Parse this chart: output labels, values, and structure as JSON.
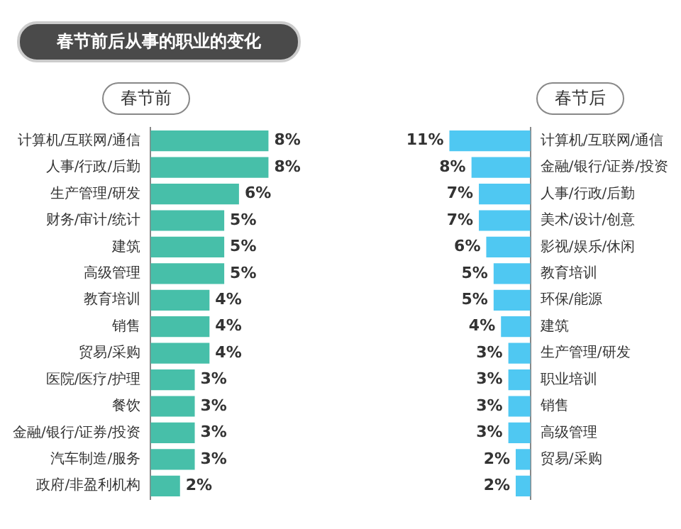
{
  "chart_data": [
    {
      "type": "bar",
      "orientation": "horizontal",
      "title": "春节前",
      "annotations": [
        "春节前后从事的职业的变化"
      ],
      "categories": [
        "计算机/互联网/通信",
        "人事/行政/后勤",
        "生产管理/研发",
        "财务/审计/统计",
        "建筑",
        "高级管理",
        "教育培训",
        "销售",
        "贸易/采购",
        "医院/医疗/护理",
        "餐饮",
        "金融/银行/证券/投资",
        "汽车制造/服务",
        "政府/非盈利机构"
      ],
      "series": [
        {
          "color": "#47bfa9",
          "values": [
            8,
            8,
            6,
            5,
            5,
            5,
            4,
            4,
            4,
            3,
            3,
            3,
            3,
            2
          ],
          "value_labels": [
            "8%",
            "8%",
            "6%",
            "5%",
            "5%",
            "5%",
            "4%",
            "4%",
            "4%",
            "3%",
            "3%",
            "3%",
            "3%",
            "2%"
          ]
        }
      ],
      "tick_labels": "y",
      "legend": false
    },
    {
      "type": "bar",
      "orientation": "horizontal",
      "title": "春节后",
      "categories": [
        "计算机/互联网/通信",
        "金融/银行/证券/投资",
        "人事/行政/后勤",
        "美术/设计/创意",
        "影视/娱乐/休闲",
        "教育培训",
        "环保/能源",
        "建筑",
        "生产管理/研发",
        "职业培训",
        "销售",
        "高级管理",
        "贸易/采购",
        null
      ],
      "series": [
        {
          "color": "#4fc8f2",
          "values": [
            11,
            8,
            7,
            7,
            6,
            5,
            5,
            4,
            3,
            3,
            3,
            3,
            2,
            2
          ],
          "value_labels": [
            "11%",
            "8%",
            "7%",
            "7%",
            "6%",
            "5%",
            "5%",
            "4%",
            "3%",
            "3%",
            "3%",
            "3%",
            "2%",
            "2%"
          ]
        }
      ],
      "tick_labels": "y",
      "legend": false
    }
  ]
}
